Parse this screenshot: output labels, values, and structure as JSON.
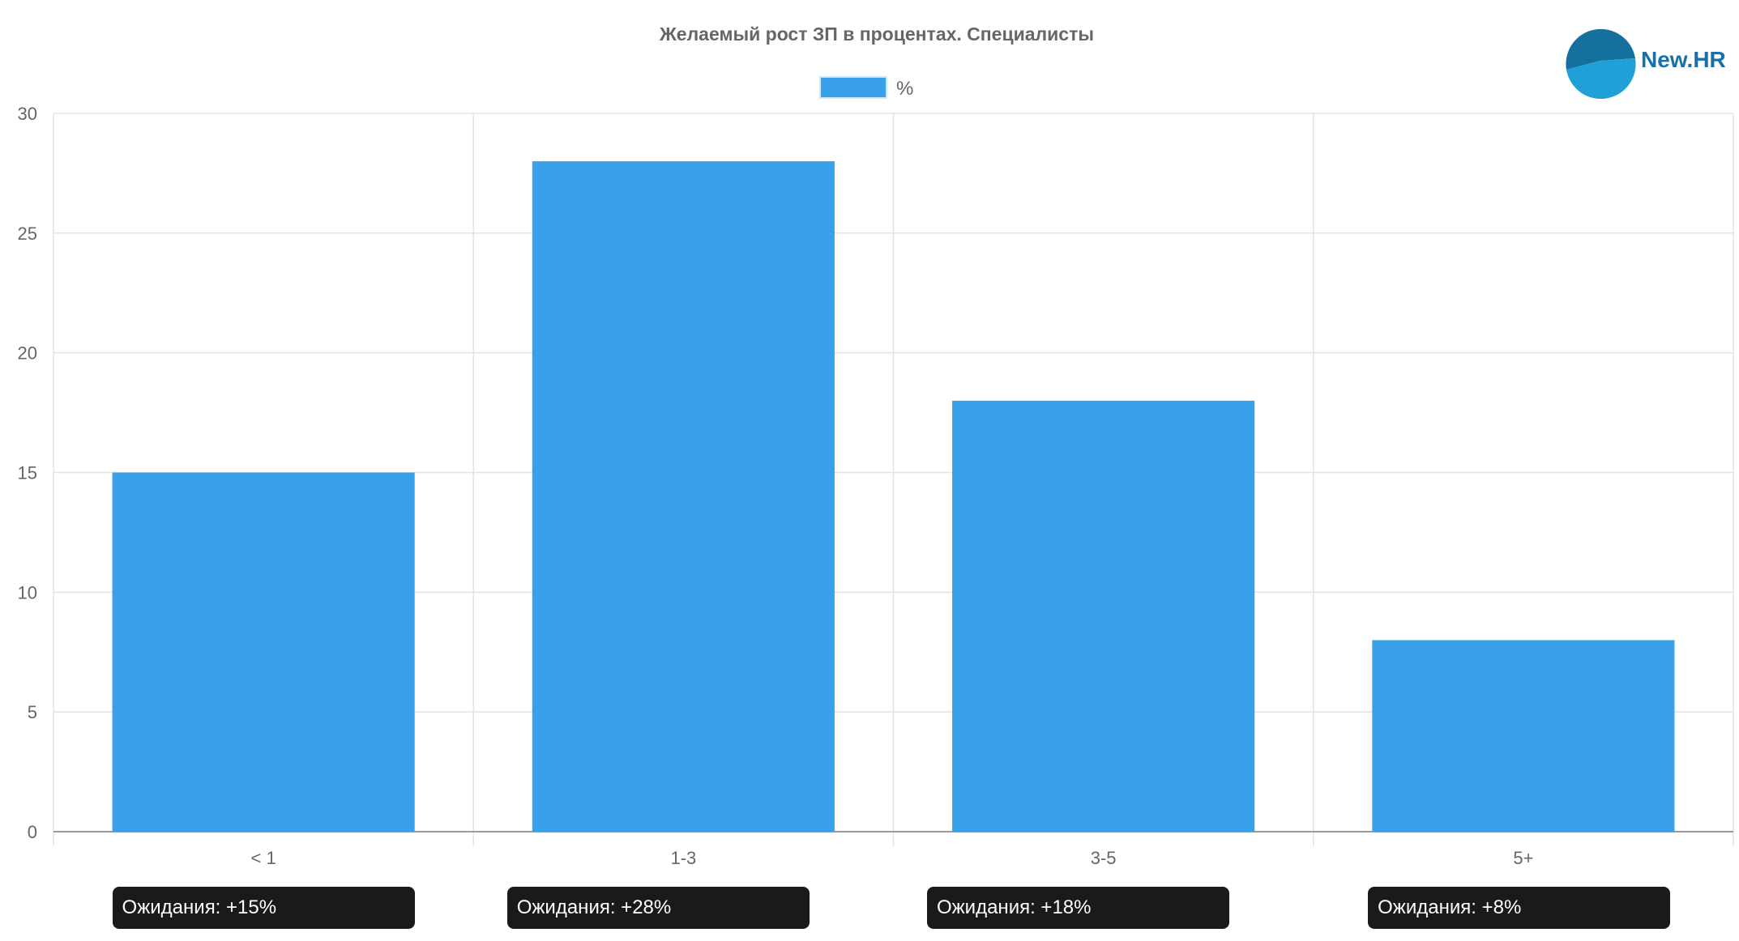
{
  "chart_data": {
    "type": "bar",
    "title": "Желаемый рост ЗП в процентах. Специалисты",
    "categories": [
      "< 1",
      "1-3",
      "3-5",
      "5+"
    ],
    "series": [
      {
        "name": "%",
        "values": [
          15,
          28,
          18,
          8
        ],
        "color": "#38a1ea"
      }
    ],
    "ylim": [
      0,
      30
    ],
    "yticks": [
      0,
      5,
      10,
      15,
      20,
      25,
      30
    ],
    "grid": true,
    "legend": "top-center",
    "annotations": [
      "Ожидания: +15%",
      "Ожидания: +28%",
      "Ожидания: +18%",
      "Ожидания: +8%"
    ]
  },
  "logo": {
    "text": "New.HR",
    "colors": [
      "#16709e",
      "#1fa0d8",
      "#1a6fa8"
    ]
  }
}
